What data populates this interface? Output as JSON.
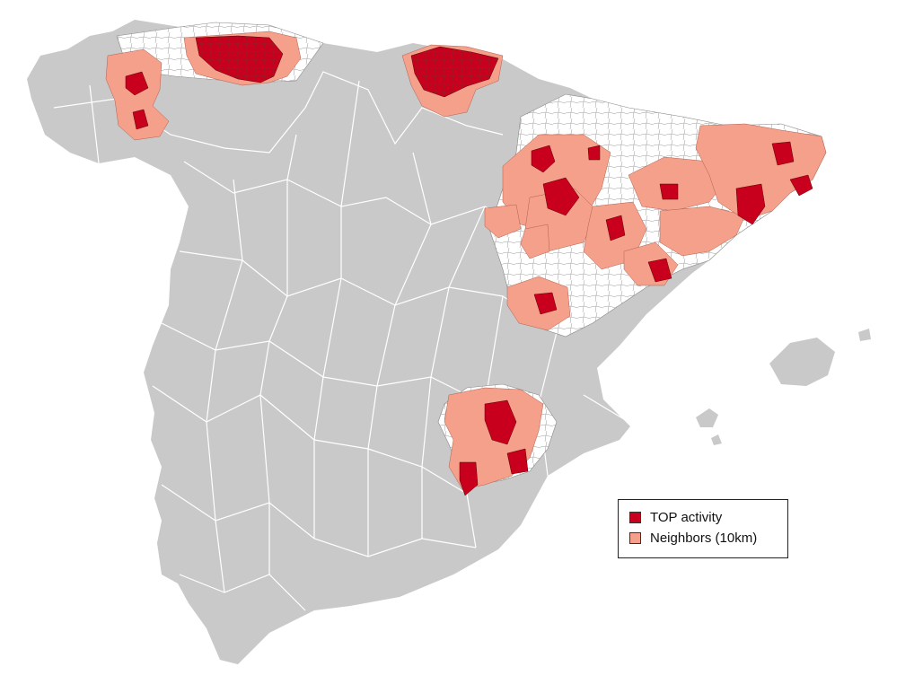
{
  "colors": {
    "land": "#c9c9c9",
    "province_border": "#ffffff",
    "studied_region": "#ffffff",
    "municipality_border": "#9a9a9a",
    "top_activity": "#c8001e",
    "neighbors": "#f4a08a"
  },
  "legend": {
    "items": [
      {
        "label": "TOP activity",
        "color": "#c8001e"
      },
      {
        "label": "Neighbors (10km)",
        "color": "#f4a08a"
      }
    ]
  }
}
